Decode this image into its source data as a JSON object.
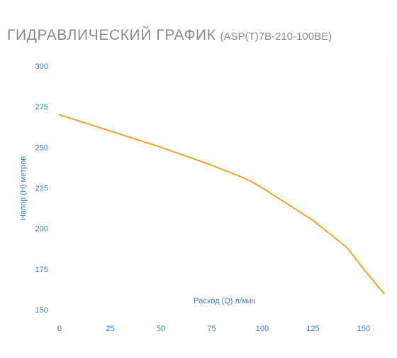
{
  "header": {
    "title": "ГИДРАВЛИЧЕСКИЙ ГРАФИК",
    "model": "(ASP(T)7B-210-100BE)"
  },
  "colors": {
    "series": "#f0a32e",
    "axis_text": "#3a7dae",
    "grid": "#f0f0f0",
    "title": "#8a8a8a"
  },
  "chart_data": {
    "type": "line",
    "title": "ГИДРАВЛИЧЕСКИЙ ГРАФИК (ASP(T)7B-210-100BE)",
    "xlabel": "Расход (Q) л/мин",
    "ylabel": "Напор (H) метров",
    "xlim": [
      0,
      160
    ],
    "ylim": [
      150,
      300
    ],
    "x_ticks": [
      0,
      25,
      50,
      75,
      100,
      125,
      150
    ],
    "y_ticks": [
      150,
      175,
      200,
      225,
      250,
      275,
      300
    ],
    "grid": false,
    "series": [
      {
        "x": [
          0,
          25,
          50,
          75,
          93,
          100,
          125,
          142,
          150,
          160
        ],
        "y": [
          270,
          260,
          250,
          239,
          230,
          225,
          205,
          188,
          175,
          160
        ]
      }
    ]
  }
}
